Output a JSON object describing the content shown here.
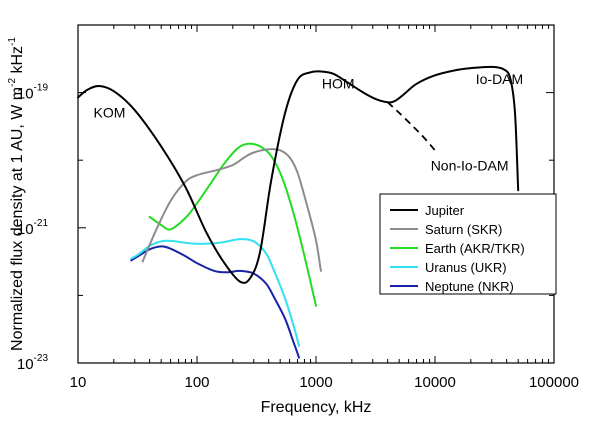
{
  "chart_data": {
    "type": "line",
    "xlabel": "Frequency, kHz",
    "ylabel": "Normalized flux density at 1 AU, W m",
    "ylabel_sup1": "-2",
    "ylabel_mid": " kHz",
    "ylabel_sup2": "-1",
    "x_scale": "log",
    "y_scale": "log",
    "xlim": [
      10,
      100000
    ],
    "ylim": [
      1e-23,
      1e-18
    ],
    "x_ticks": [
      {
        "value": 10,
        "label": "10"
      },
      {
        "value": 100,
        "label": "100"
      },
      {
        "value": 1000,
        "label": "1000"
      },
      {
        "value": 10000,
        "label": "10000"
      },
      {
        "value": 100000,
        "label": "100000"
      }
    ],
    "y_ticks": [
      {
        "value": 1e-23,
        "base": "10",
        "exp": "-23"
      },
      {
        "value": 1e-21,
        "base": "10",
        "exp": "-21"
      },
      {
        "value": 1e-19,
        "base": "10",
        "exp": "-19"
      }
    ],
    "grid": false,
    "legend_position": "bottom-right",
    "series": [
      {
        "name": "Jupiter",
        "color": "#000000",
        "x": [
          10,
          12,
          15,
          20,
          30,
          50,
          80,
          120,
          170,
          230,
          280,
          340,
          420,
          550,
          700,
          900,
          1100,
          1400,
          1800,
          2500,
          3200,
          4000,
          4600,
          5500,
          7000,
          10000,
          15000,
          20000,
          30000,
          38000,
          43000,
          47000,
          50000
        ],
        "y": [
          8.5e-20,
          1.1e-19,
          1.25e-19,
          1.05e-19,
          5.5e-20,
          1.6e-20,
          4e-21,
          8.5e-22,
          3e-22,
          1.6e-22,
          1.8e-22,
          4.5e-22,
          5e-21,
          5e-20,
          1.55e-19,
          2e-19,
          2.05e-19,
          1.9e-19,
          1.45e-19,
          1e-19,
          8e-20,
          7.2e-20,
          7.5e-20,
          9.5e-20,
          1.35e-19,
          1.8e-19,
          2.15e-19,
          2.3e-19,
          2.4e-19,
          2.2e-19,
          1.6e-19,
          5e-20,
          3.6e-21
        ]
      },
      {
        "name": "Saturn (SKR)",
        "color": "#8c8c8c",
        "x": [
          35,
          45,
          60,
          80,
          100,
          150,
          200,
          250,
          300,
          400,
          500,
          600,
          700,
          850,
          1000,
          1100
        ],
        "y": [
          3.2e-22,
          9e-22,
          2.5e-21,
          4.8e-21,
          6e-21,
          7.2e-21,
          8.5e-21,
          1.1e-20,
          1.3e-20,
          1.45e-20,
          1.4e-20,
          1.1e-20,
          6.5e-21,
          2e-21,
          6.5e-22,
          2.3e-22
        ]
      },
      {
        "name": "Earth (AKR/TKR)",
        "color": "#22dd22",
        "x": [
          40,
          50,
          60,
          80,
          100,
          130,
          170,
          220,
          270,
          340,
          420,
          520,
          650,
          800,
          1000
        ],
        "y": [
          1.45e-21,
          1.1e-21,
          9.5e-22,
          1.4e-21,
          2.3e-21,
          4.5e-21,
          9e-21,
          1.5e-20,
          1.75e-20,
          1.6e-20,
          1.15e-20,
          5.5e-21,
          1.6e-21,
          3.8e-22,
          7e-23
        ]
      },
      {
        "name": "Uranus (UKR)",
        "color": "#33e0f2",
        "x": [
          28,
          32,
          40,
          50,
          60,
          80,
          100,
          140,
          180,
          230,
          300,
          380,
          450,
          550,
          650,
          720
        ],
        "y": [
          3.5e-22,
          4e-22,
          5.4e-22,
          6.3e-22,
          6.4e-22,
          6e-22,
          5.8e-22,
          5.9e-22,
          6.3e-22,
          6.8e-22,
          6.3e-22,
          4.2e-22,
          2.2e-22,
          9e-23,
          3.5e-23,
          1.8e-23
        ]
      },
      {
        "name": "Neptune (NKR)",
        "color": "#1a22a8",
        "x": [
          28,
          32,
          40,
          50,
          60,
          80,
          100,
          140,
          180,
          230,
          300,
          380,
          450,
          550,
          650,
          720
        ],
        "y": [
          3.3e-22,
          3.8e-22,
          4.8e-22,
          5.3e-22,
          4.9e-22,
          3.8e-22,
          3e-22,
          2.3e-22,
          2.2e-22,
          2.3e-22,
          2.1e-22,
          1.5e-22,
          9e-23,
          4.5e-23,
          2e-23,
          1.2e-23
        ]
      }
    ],
    "extra_lines": [
      {
        "name": "Non-Io-DAM",
        "color": "#000000",
        "dashed": true,
        "x": [
          4000,
          5000,
          6500,
          8000,
          10000
        ],
        "y": [
          7.2e-20,
          5e-20,
          3.2e-20,
          2.2e-20,
          1.4e-20
        ]
      }
    ],
    "annotations": [
      {
        "text": "KOM",
        "x": 13.5,
        "y": 4.3e-20
      },
      {
        "text": "HOM",
        "x": 1120,
        "y": 1.15e-19
      },
      {
        "text": "Io-DAM",
        "x": 22000,
        "y": 1.35e-19
      },
      {
        "text": "Non-Io-DAM",
        "x": 9200,
        "y": 7e-21
      }
    ]
  }
}
